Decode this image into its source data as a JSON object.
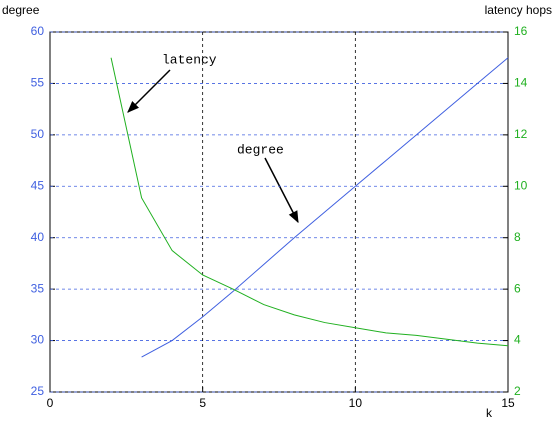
{
  "chart_data": {
    "type": "line",
    "y_label": "degree",
    "y2_label": "latency hops",
    "x_label": "k",
    "x": [
      2,
      3,
      4,
      5,
      6,
      7,
      8,
      9,
      10,
      11,
      12,
      13,
      14,
      15
    ],
    "series": [
      {
        "name": "degree",
        "color": "#4060e0",
        "values": [
          null,
          28.4,
          30,
          32.3,
          34.8,
          37.4,
          40,
          42.5,
          45,
          47.5,
          50,
          52.5,
          55,
          57.5
        ]
      },
      {
        "name": "latency",
        "color": "#20b020",
        "axis": "y2",
        "values": [
          15.0,
          9.55,
          7.5,
          6.55,
          6.0,
          5.4,
          5.0,
          4.7,
          4.5,
          4.3,
          4.2,
          4.05,
          3.9,
          3.8
        ]
      }
    ],
    "xlim": [
      0,
      15
    ],
    "xticks": [
      0,
      5,
      10,
      15
    ],
    "ylim": [
      25,
      60
    ],
    "yticks": [
      25,
      30,
      35,
      40,
      45,
      50,
      55,
      60
    ],
    "y2lim": [
      2,
      16
    ],
    "y2ticks": [
      2,
      4,
      6,
      8,
      10,
      12,
      14,
      16
    ],
    "grid": true,
    "annotations": [
      "latency",
      "degree"
    ]
  }
}
